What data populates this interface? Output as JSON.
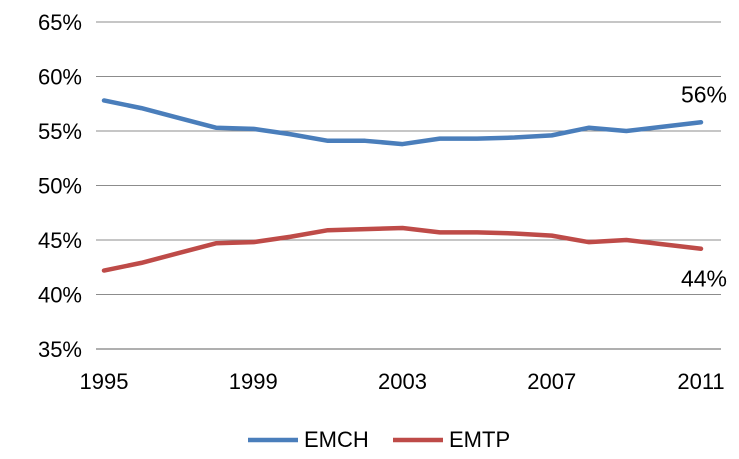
{
  "chart_data": {
    "type": "line",
    "title": "",
    "xlabel": "",
    "ylabel": "",
    "x": [
      1995,
      1996,
      1997,
      1998,
      1999,
      2000,
      2001,
      2002,
      2003,
      2004,
      2005,
      2006,
      2007,
      2008,
      2009,
      2010,
      2011
    ],
    "x_ticks": [
      "1995",
      "1999",
      "2003",
      "2007",
      "2011"
    ],
    "x_tick_values": [
      1995,
      1999,
      2003,
      2007,
      2011
    ],
    "xlim": [
      1995,
      2011
    ],
    "ylim": [
      35,
      65
    ],
    "y_ticks": [
      35,
      40,
      45,
      50,
      55,
      60,
      65
    ],
    "y_tick_labels": [
      "35%",
      "40%",
      "45%",
      "50%",
      "55%",
      "60%",
      "65%"
    ],
    "grid": true,
    "legend_position": "bottom",
    "series": [
      {
        "name": "EMCH",
        "color": "#4a7ebb",
        "values": [
          57.8,
          57.1,
          56.2,
          55.3,
          55.2,
          54.7,
          54.1,
          54.1,
          53.8,
          54.3,
          54.3,
          54.4,
          54.6,
          55.3,
          55.0,
          55.4,
          55.8
        ],
        "end_label": "56%"
      },
      {
        "name": "EMTP",
        "color": "#be4b48",
        "values": [
          42.2,
          42.9,
          43.8,
          44.7,
          44.8,
          45.3,
          45.9,
          46.0,
          46.1,
          45.7,
          45.7,
          45.6,
          45.4,
          44.8,
          45.0,
          44.6,
          44.2
        ],
        "end_label": "44%"
      }
    ]
  }
}
